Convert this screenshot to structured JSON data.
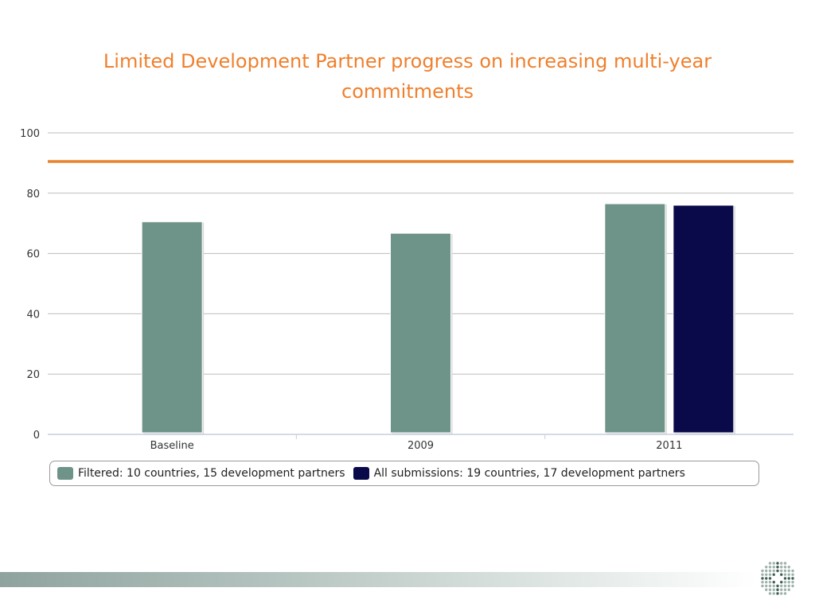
{
  "slide": {
    "title": "Limited Development Partner progress on increasing multi-year commitments"
  },
  "colors": {
    "title": "#f07f2c",
    "target_line": "#e8842e",
    "filtered": "#6e9389",
    "all_submissions": "#0a0a4a",
    "grid": "#bdbdbd"
  },
  "chart_data": {
    "type": "bar",
    "categories": [
      "Baseline",
      "2009",
      "2011"
    ],
    "series": [
      {
        "name": "Filtered: 10 countries, 15 development partners",
        "values": [
          70.5,
          66.7,
          76.5
        ]
      },
      {
        "name": "All submissions: 19 countries, 17 development partners",
        "values": [
          null,
          null,
          76.0
        ]
      }
    ],
    "reference_line": 90.5,
    "ylim": [
      0,
      100
    ],
    "yticks": [
      0,
      20,
      40,
      60,
      80,
      100
    ],
    "grid": true,
    "legend_position": "bottom"
  },
  "logo": {
    "icon": "dotted-cross-logo-icon"
  }
}
